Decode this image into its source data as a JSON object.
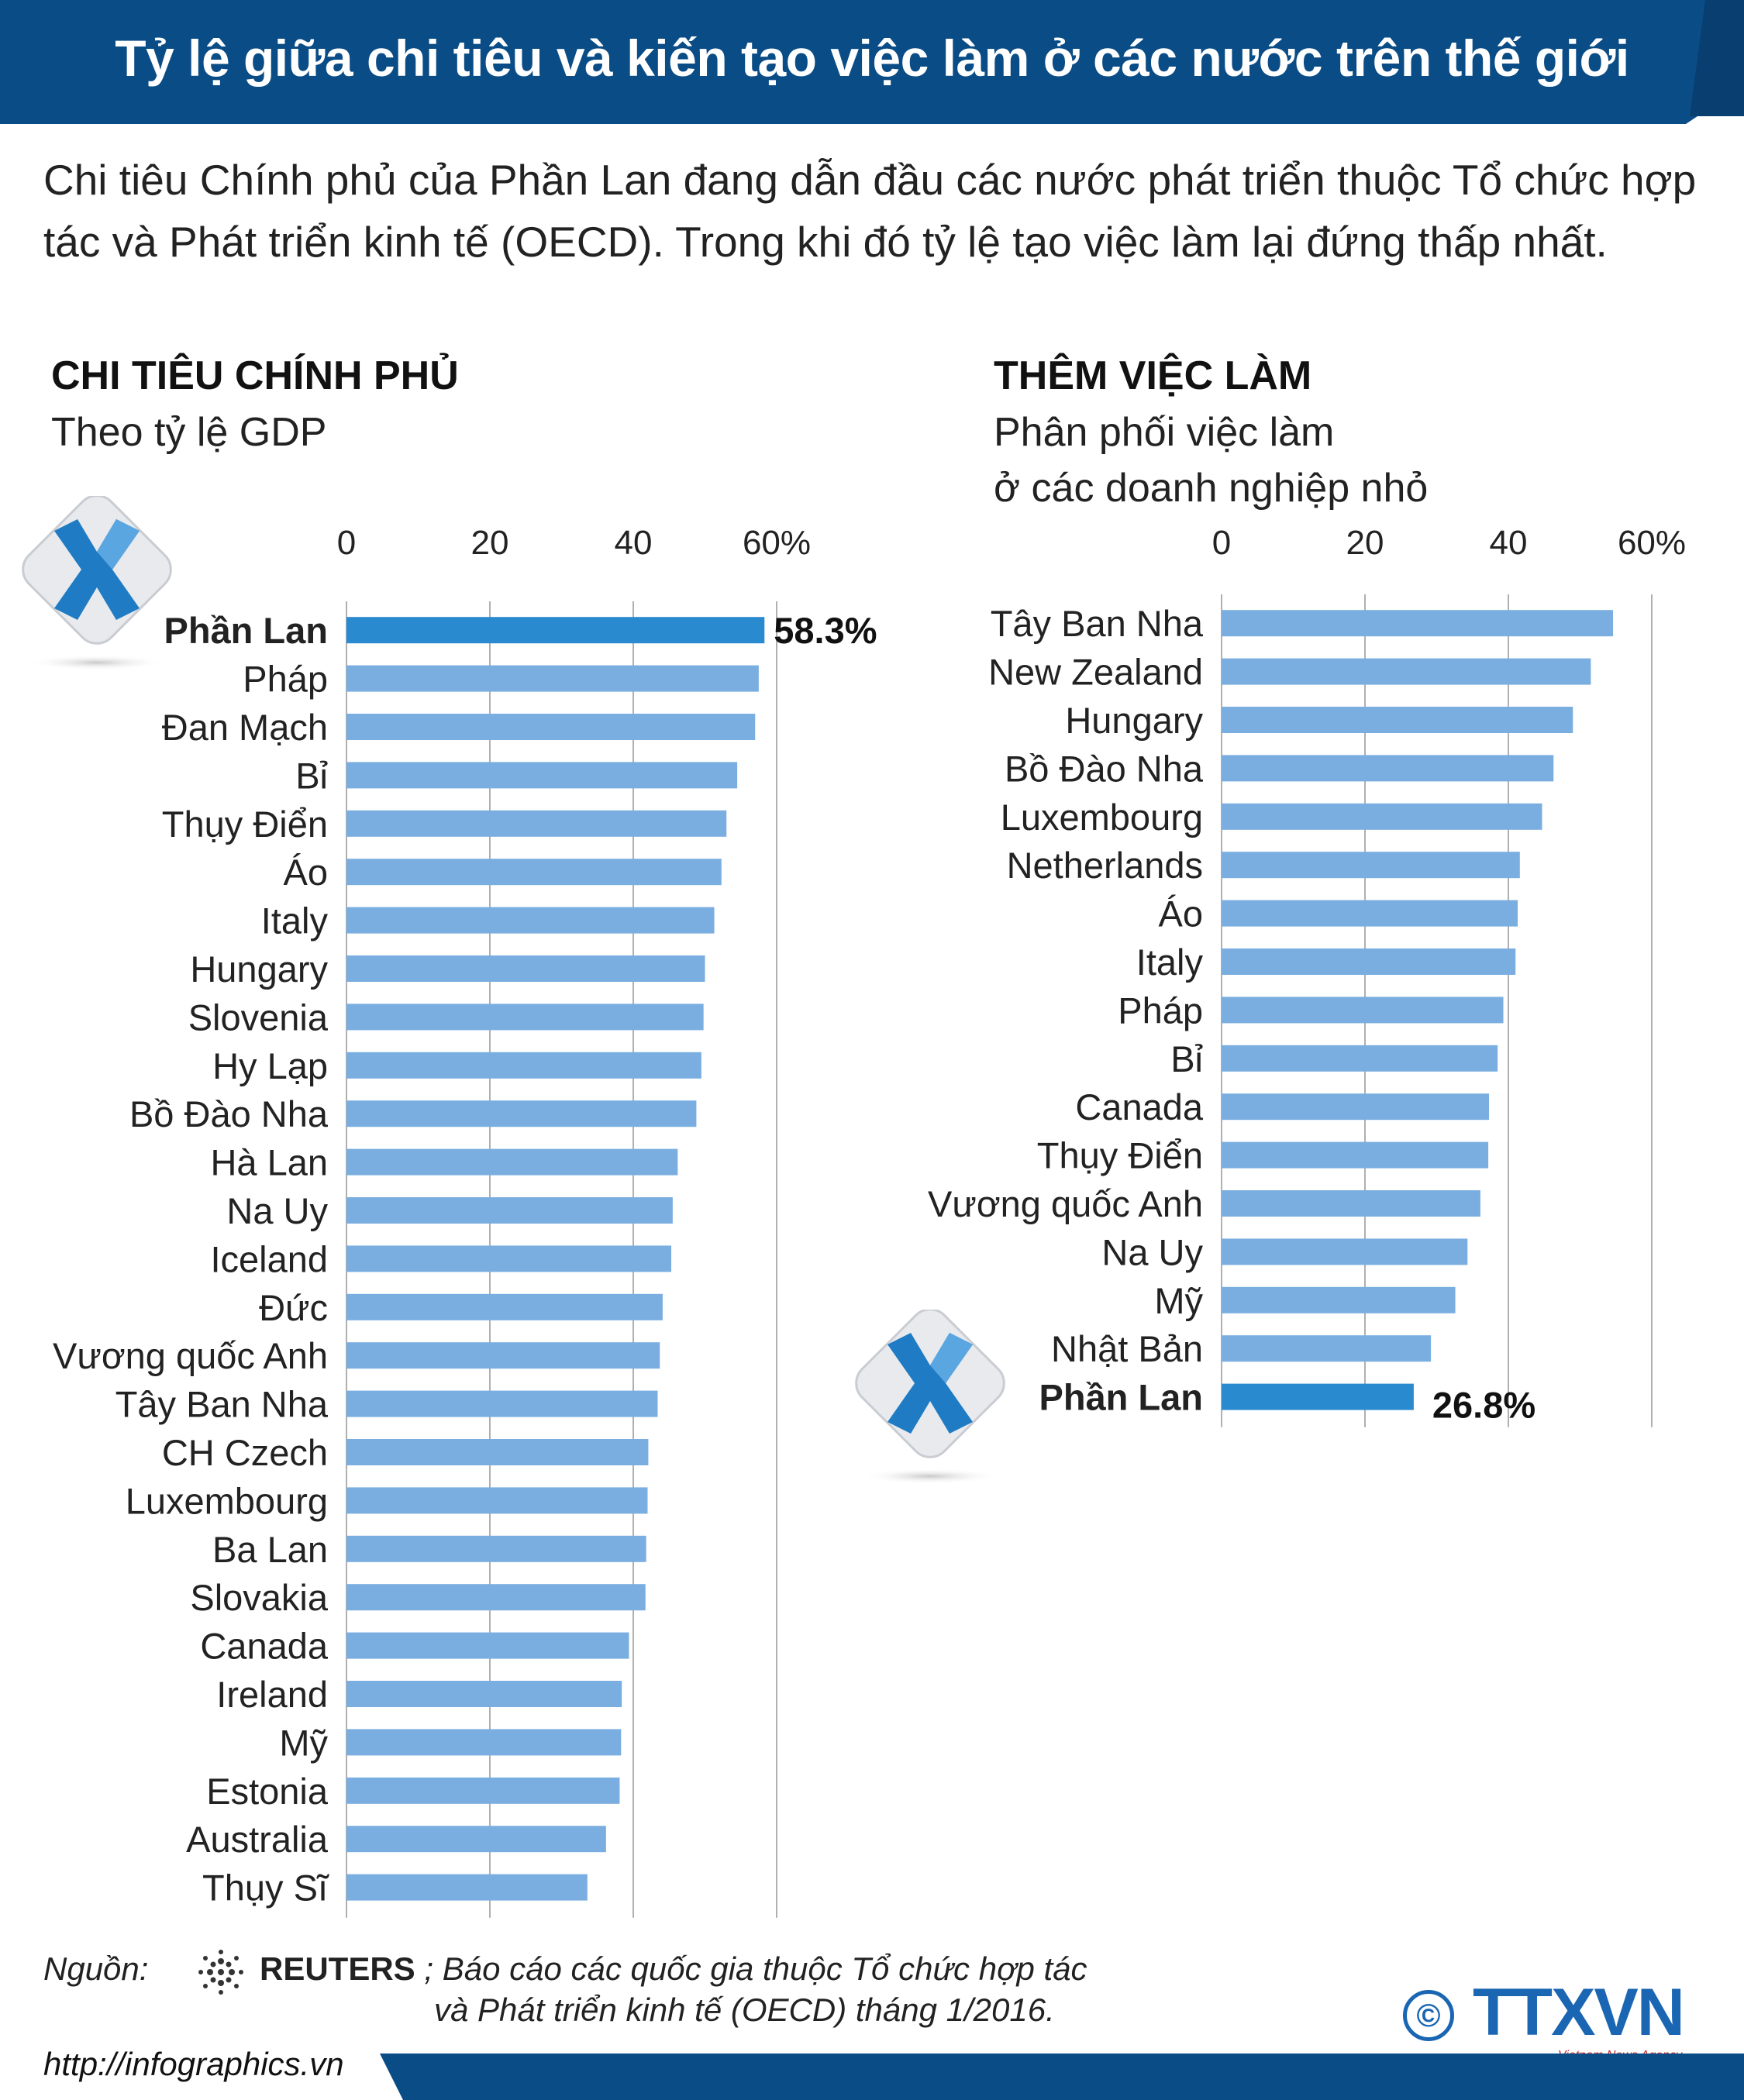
{
  "header": {
    "title": "Tỷ lệ giữa chi tiêu và kiến tạo việc làm ở các nước trên thế giới"
  },
  "intro": "Chi tiêu Chính phủ của Phần Lan đang dẫn đầu các nước phát triển thuộc Tổ chức hợp tác và Phát triển kinh tế (OECD). Trong khi đó tỷ lệ tạo việc làm lại đứng thấp nhất.",
  "left_section": {
    "title": "CHI TIÊU CHÍNH PHỦ",
    "subtitle": "Theo tỷ lệ GDP"
  },
  "right_section": {
    "title": "THÊM VIỆC LÀM",
    "subtitle_1": "Phân phối việc làm",
    "subtitle_2": "ở các doanh nghiệp nhỏ"
  },
  "colors": {
    "bar": "#7aaee0",
    "highlight": "#2a8ad0",
    "banner": "#0a4c86",
    "axis": "#b0b0b0"
  },
  "chart_data": [
    {
      "type": "bar",
      "orientation": "horizontal",
      "title": "CHI TIÊU CHÍNH PHỦ",
      "subtitle": "Theo tỷ lệ GDP",
      "xlim": [
        0,
        60
      ],
      "ticks": [
        "0",
        "20",
        "40",
        "60%"
      ],
      "highlight": "Phần Lan",
      "highlight_label": "58.3%",
      "categories": [
        "Phần Lan",
        "Pháp",
        "Đan Mạch",
        "Bỉ",
        "Thụy Điển",
        "Áo",
        "Italy",
        "Hungary",
        "Slovenia",
        "Hy Lạp",
        "Bồ Đào Nha",
        "Hà Lan",
        "Na Uy",
        "Iceland",
        "Đức",
        "Vương quốc Anh",
        "Tây Ban Nha",
        "CH Czech",
        "Luxembourg",
        "Ba Lan",
        "Slovakia",
        "Canada",
        "Ireland",
        "Mỹ",
        "Estonia",
        "Australia",
        "Thụy Sĩ"
      ],
      "values": [
        58.3,
        57.5,
        57.0,
        54.5,
        53.0,
        52.3,
        51.3,
        50.0,
        49.8,
        49.5,
        48.8,
        46.2,
        45.5,
        45.3,
        44.1,
        43.7,
        43.4,
        42.1,
        42.0,
        41.8,
        41.7,
        39.4,
        38.4,
        38.3,
        38.1,
        36.2,
        33.6
      ]
    },
    {
      "type": "bar",
      "orientation": "horizontal",
      "title": "THÊM VIỆC LÀM",
      "subtitle": "Phân phối việc làm ở các doanh nghiệp nhỏ",
      "xlim": [
        0,
        60
      ],
      "ticks": [
        "0",
        "20",
        "40",
        "60%"
      ],
      "highlight": "Phần Lan",
      "highlight_label": "26.8%",
      "categories": [
        "Tây Ban Nha",
        "New Zealand",
        "Hungary",
        "Bồ Đào Nha",
        "Luxembourg",
        "Netherlands",
        "Áo",
        "Italy",
        "Pháp",
        "Bỉ",
        "Canada",
        "Thụy Điển",
        "Vương quốc Anh",
        "Na Uy",
        "Mỹ",
        "Nhật Bản",
        "Phần Lan"
      ],
      "values": [
        54.6,
        51.5,
        49.0,
        46.3,
        44.7,
        41.6,
        41.3,
        41.0,
        39.3,
        38.5,
        37.3,
        37.2,
        36.1,
        34.3,
        32.6,
        29.2,
        26.8
      ]
    }
  ],
  "footer": {
    "source_label": "Nguồn:",
    "reuters": "REUTERS",
    "source_rest": " ; Báo cáo các quốc gia thuộc Tổ chức hợp tác",
    "source_line2": "và Phát triển kinh tế (OECD) tháng 1/2016.",
    "url": "http://infographics.vn",
    "copyright": "©",
    "brand": "TTXVN",
    "brand_sub": "Vietnam News Agency"
  }
}
